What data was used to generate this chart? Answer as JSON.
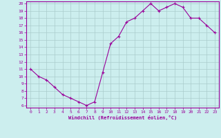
{
  "x": [
    0,
    1,
    2,
    3,
    4,
    5,
    6,
    7,
    8,
    9,
    10,
    11,
    12,
    13,
    14,
    15,
    16,
    17,
    18,
    19,
    20,
    21,
    22,
    23
  ],
  "y": [
    11,
    10,
    9.5,
    8.5,
    7.5,
    7,
    6.5,
    6,
    6.5,
    10.5,
    14.5,
    15.5,
    17.5,
    18,
    19,
    20,
    19,
    19.5,
    20,
    19.5,
    18,
    18,
    17,
    16
  ],
  "line_color": "#990099",
  "marker": "+",
  "marker_size": 3,
  "bg_color": "#cceeee",
  "grid_color": "#aacccc",
  "xlabel": "Windchill (Refroidissement éolien,°C)",
  "xlabel_color": "#990099",
  "tick_color": "#990099",
  "spine_color": "#990099",
  "xlim": [
    -0.5,
    23.5
  ],
  "ylim": [
    5.7,
    20.3
  ],
  "yticks": [
    6,
    7,
    8,
    9,
    10,
    11,
    12,
    13,
    14,
    15,
    16,
    17,
    18,
    19,
    20
  ],
  "xticks": [
    0,
    1,
    2,
    3,
    4,
    5,
    6,
    7,
    8,
    9,
    10,
    11,
    12,
    13,
    14,
    15,
    16,
    17,
    18,
    19,
    20,
    21,
    22,
    23
  ]
}
